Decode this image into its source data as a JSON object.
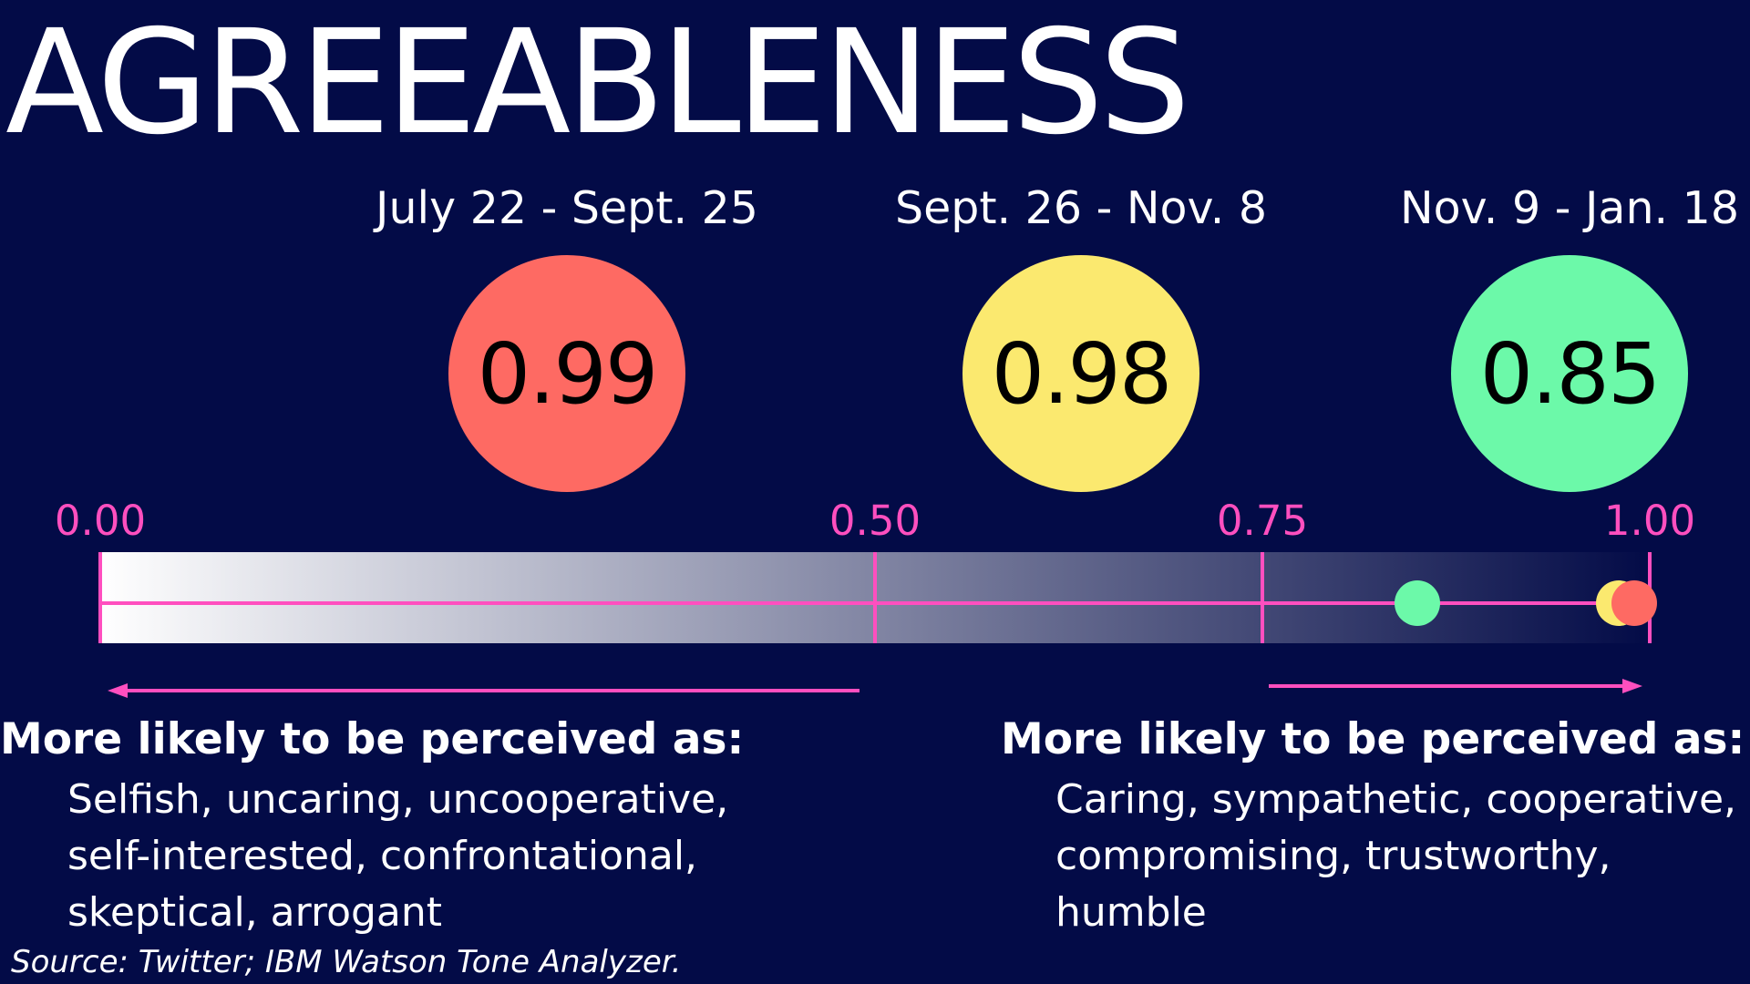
{
  "title": "AGREEABLENESS",
  "chart_data": {
    "type": "scatter",
    "title": "AGREEABLENESS",
    "xlim": [
      0,
      1
    ],
    "ticks": [
      "0.00",
      "0.50",
      "0.75",
      "1.00"
    ],
    "tick_values": [
      0,
      0.5,
      0.75,
      1
    ],
    "series": [
      {
        "name": "July 22 - Sept. 25",
        "value": 0.99,
        "label": "0.99",
        "color": "#fe6a63"
      },
      {
        "name": "Sept. 26 - Nov. 8",
        "value": 0.98,
        "label": "0.98",
        "color": "#fbe96f"
      },
      {
        "name": "Nov. 9 - Jan. 18",
        "value": 0.85,
        "label": "0.85",
        "color": "#6cf9a9"
      }
    ]
  },
  "colors": {
    "background": "#030b47",
    "axis": "#ff4fbf",
    "gradient_start": "#ffffff",
    "gradient_end": "#030b47"
  },
  "low_side": {
    "heading": "More likely to be perceived as:",
    "lines": [
      "Selfish, uncaring, uncooperative,",
      "self-interested, confrontational,",
      "skeptical, arrogant"
    ]
  },
  "high_side": {
    "heading": "More likely to be perceived as:",
    "lines": [
      "Caring, sympathetic, cooperative,",
      "compromising, trustworthy,",
      "humble"
    ]
  },
  "source": "Source: Twitter; IBM Watson Tone Analyzer."
}
